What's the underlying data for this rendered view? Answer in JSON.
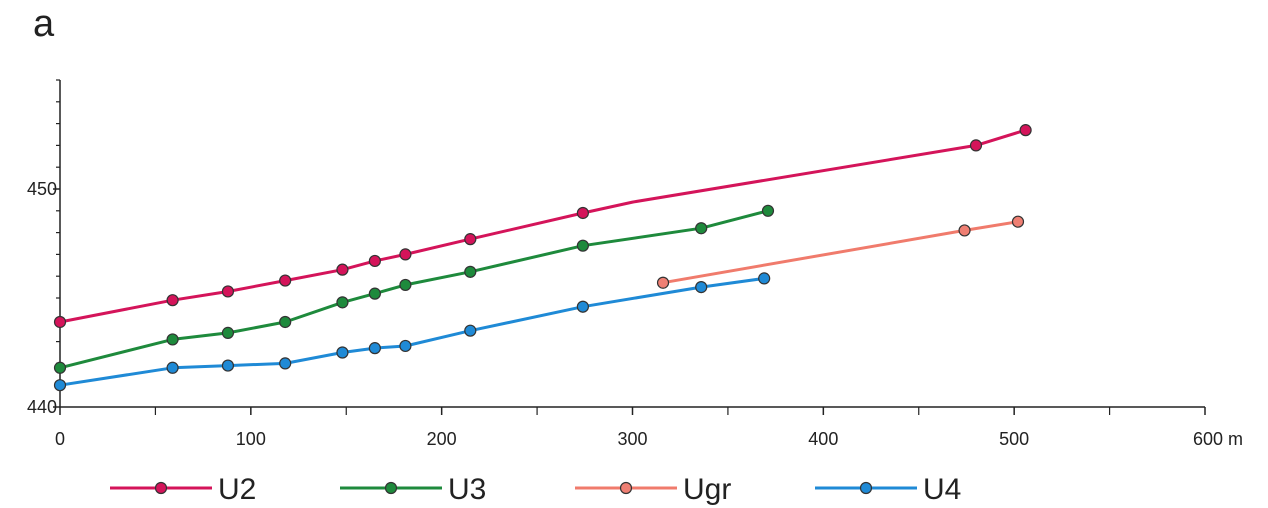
{
  "panel_label": "a",
  "chart_data": {
    "type": "line",
    "xlabel": "",
    "ylabel": "",
    "x_unit": "m",
    "xlim": [
      0,
      600
    ],
    "ylim": [
      440,
      455
    ],
    "x_ticks": [
      0,
      100,
      200,
      300,
      400,
      500,
      600
    ],
    "x_tick_labels": [
      "0",
      "100",
      "200",
      "300",
      "400",
      "500",
      "600 m"
    ],
    "x_minor_ticks": [
      50,
      150,
      250,
      350,
      450,
      550
    ],
    "y_ticks": [
      440,
      450
    ],
    "y_tick_labels": [
      "440",
      "450"
    ],
    "y_minor_ticks": [
      441,
      442,
      443,
      444,
      445,
      446,
      447,
      448,
      449,
      451,
      452,
      453,
      454,
      455
    ],
    "grid": false,
    "legend_position": "bottom",
    "series": [
      {
        "name": "U2",
        "color": "#d4145a",
        "points": [
          [
            0,
            443.9
          ],
          [
            59,
            444.9
          ],
          [
            88,
            445.3
          ],
          [
            118,
            445.8
          ],
          [
            148,
            446.3
          ],
          [
            165,
            446.7
          ],
          [
            181,
            447.0
          ],
          [
            215,
            447.7
          ],
          [
            274,
            448.9
          ],
          [
            480,
            452.0
          ],
          [
            506,
            452.7
          ]
        ],
        "line": [
          [
            0,
            443.9
          ],
          [
            59,
            444.9
          ],
          [
            88,
            445.3
          ],
          [
            118,
            445.8
          ],
          [
            148,
            446.3
          ],
          [
            165,
            446.7
          ],
          [
            181,
            447.0
          ],
          [
            215,
            447.7
          ],
          [
            274,
            448.9
          ],
          [
            300,
            449.4
          ],
          [
            480,
            452.0
          ],
          [
            506,
            452.7
          ]
        ]
      },
      {
        "name": "U3",
        "color": "#1e8a3c",
        "points": [
          [
            0,
            441.8
          ],
          [
            59,
            443.1
          ],
          [
            88,
            443.4
          ],
          [
            118,
            443.9
          ],
          [
            148,
            444.8
          ],
          [
            165,
            445.2
          ],
          [
            181,
            445.6
          ],
          [
            215,
            446.2
          ],
          [
            274,
            447.4
          ],
          [
            336,
            448.2
          ],
          [
            371,
            449.0
          ]
        ],
        "line": [
          [
            0,
            441.8
          ],
          [
            59,
            443.1
          ],
          [
            88,
            443.4
          ],
          [
            118,
            443.9
          ],
          [
            148,
            444.8
          ],
          [
            165,
            445.2
          ],
          [
            181,
            445.6
          ],
          [
            215,
            446.2
          ],
          [
            274,
            447.4
          ],
          [
            336,
            448.2
          ],
          [
            371,
            449.0
          ]
        ]
      },
      {
        "name": "Ugr",
        "color": "#f07b6c",
        "marker_color": "#ef7f73",
        "points": [
          [
            316,
            445.7
          ],
          [
            474,
            448.1
          ],
          [
            502,
            448.5
          ]
        ],
        "line": [
          [
            316,
            445.7
          ],
          [
            474,
            448.1
          ],
          [
            502,
            448.5
          ]
        ]
      },
      {
        "name": "U4",
        "color": "#1f8ad6",
        "points": [
          [
            0,
            441.0
          ],
          [
            59,
            441.8
          ],
          [
            88,
            441.9
          ],
          [
            118,
            442.0
          ],
          [
            148,
            442.5
          ],
          [
            165,
            442.7
          ],
          [
            181,
            442.8
          ],
          [
            215,
            443.5
          ],
          [
            274,
            444.6
          ],
          [
            336,
            445.5
          ],
          [
            369,
            445.9
          ]
        ],
        "line": [
          [
            0,
            441.0
          ],
          [
            59,
            441.8
          ],
          [
            88,
            441.9
          ],
          [
            118,
            442.0
          ],
          [
            148,
            442.5
          ],
          [
            165,
            442.7
          ],
          [
            181,
            442.8
          ],
          [
            215,
            443.5
          ],
          [
            274,
            444.6
          ],
          [
            336,
            445.5
          ],
          [
            369,
            445.9
          ]
        ]
      }
    ],
    "legend": [
      {
        "label": "U2",
        "color": "#d4145a"
      },
      {
        "label": "U3",
        "color": "#1e8a3c"
      },
      {
        "label": "Ugr",
        "color": "#f07b6c",
        "marker_color": "#ef7f73"
      },
      {
        "label": "U4",
        "color": "#1f8ad6"
      }
    ]
  }
}
